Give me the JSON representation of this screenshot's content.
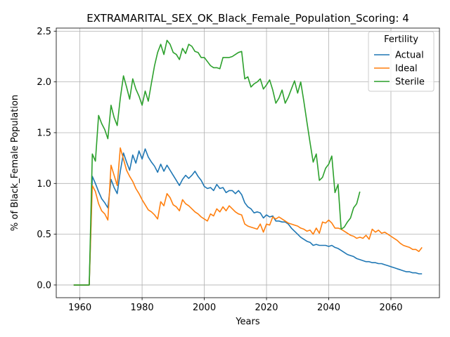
{
  "chart_data": {
    "type": "line",
    "title": "EXTRAMARITAL_SEX_OK_Black_Female_Population_Scoring: 4",
    "xlabel": "Years",
    "ylabel": "% of Black_Female Population",
    "xlim": [
      1952.4,
      2075.6
    ],
    "ylim": [
      -0.125,
      2.53
    ],
    "xticks": [
      1960,
      1980,
      2000,
      2020,
      2040,
      2060
    ],
    "yticks": [
      0.0,
      0.5,
      1.0,
      1.5,
      2.0,
      2.5
    ],
    "xtick_labels": [
      "1960",
      "1980",
      "2000",
      "2020",
      "2040",
      "2060"
    ],
    "ytick_labels": [
      "0.0",
      "0.5",
      "1.0",
      "1.5",
      "2.0",
      "2.5"
    ],
    "grid": true,
    "legend_title": "Fertility",
    "legend_position": "top-right",
    "series": [
      {
        "name": "Actual",
        "color": "#1f77b4",
        "x": [
          1958,
          1959,
          1960,
          1961,
          1962,
          1963,
          1964,
          1965,
          1966,
          1967,
          1968,
          1969,
          1970,
          1971,
          1972,
          1973,
          1974,
          1975,
          1976,
          1977,
          1978,
          1979,
          1980,
          1981,
          1982,
          1983,
          1984,
          1985,
          1986,
          1987,
          1988,
          1989,
          1990,
          1991,
          1992,
          1993,
          1994,
          1995,
          1996,
          1997,
          1998,
          1999,
          2000,
          2001,
          2002,
          2003,
          2004,
          2005,
          2006,
          2007,
          2008,
          2009,
          2010,
          2011,
          2012,
          2013,
          2014,
          2015,
          2016,
          2017,
          2018,
          2019,
          2020,
          2021,
          2022,
          2023,
          2024,
          2025,
          2026,
          2027,
          2028,
          2029,
          2030,
          2031,
          2032,
          2033,
          2034,
          2035,
          2036,
          2037,
          2038,
          2039,
          2040,
          2041,
          2042,
          2043,
          2044,
          2045,
          2046,
          2047,
          2048,
          2049,
          2050,
          2051,
          2052,
          2053,
          2054,
          2055,
          2056,
          2057,
          2058,
          2059,
          2060,
          2061,
          2062,
          2063,
          2064,
          2065,
          2066,
          2067,
          2068,
          2069,
          2070
        ],
        "values": [
          0.0,
          0.0,
          0.0,
          0.0,
          0.0,
          0.0,
          1.07,
          1.0,
          0.92,
          0.85,
          0.81,
          0.76,
          1.04,
          0.96,
          0.9,
          1.12,
          1.3,
          1.21,
          1.13,
          1.28,
          1.2,
          1.32,
          1.24,
          1.34,
          1.26,
          1.21,
          1.17,
          1.11,
          1.19,
          1.12,
          1.18,
          1.13,
          1.08,
          1.03,
          0.98,
          1.04,
          1.08,
          1.05,
          1.08,
          1.12,
          1.07,
          1.03,
          0.97,
          0.95,
          0.96,
          0.93,
          0.99,
          0.95,
          0.96,
          0.91,
          0.93,
          0.93,
          0.9,
          0.93,
          0.89,
          0.81,
          0.77,
          0.75,
          0.71,
          0.72,
          0.71,
          0.66,
          0.69,
          0.67,
          0.68,
          0.63,
          0.63,
          0.62,
          0.62,
          0.6,
          0.56,
          0.53,
          0.5,
          0.47,
          0.45,
          0.43,
          0.42,
          0.39,
          0.4,
          0.39,
          0.39,
          0.39,
          0.38,
          0.39,
          0.37,
          0.36,
          0.34,
          0.32,
          0.3,
          0.29,
          0.28,
          0.26,
          0.25,
          0.24,
          0.23,
          0.23,
          0.22,
          0.22,
          0.21,
          0.21,
          0.2,
          0.19,
          0.18,
          0.17,
          0.16,
          0.15,
          0.14,
          0.13,
          0.13,
          0.12,
          0.12,
          0.11,
          0.11
        ],
        "x_note": ""
      },
      {
        "name": "Ideal",
        "color": "#ff7f0e",
        "x": [
          1958,
          1959,
          1960,
          1961,
          1962,
          1963,
          1964,
          1965,
          1966,
          1967,
          1968,
          1969,
          1970,
          1971,
          1972,
          1973,
          1974,
          1975,
          1976,
          1977,
          1978,
          1979,
          1980,
          1981,
          1982,
          1983,
          1984,
          1985,
          1986,
          1987,
          1988,
          1989,
          1990,
          1991,
          1992,
          1993,
          1994,
          1995,
          1996,
          1997,
          1998,
          1999,
          2000,
          2001,
          2002,
          2003,
          2004,
          2005,
          2006,
          2007,
          2008,
          2009,
          2010,
          2011,
          2012,
          2013,
          2014,
          2015,
          2016,
          2017,
          2018,
          2019,
          2020,
          2021,
          2022,
          2023,
          2024,
          2025,
          2026,
          2027,
          2028,
          2029,
          2030,
          2031,
          2032,
          2033,
          2034,
          2035,
          2036,
          2037,
          2038,
          2039,
          2040,
          2041,
          2042,
          2043,
          2044,
          2045,
          2046,
          2047,
          2048,
          2049,
          2050,
          2051,
          2052,
          2053,
          2054,
          2055,
          2056,
          2057,
          2058,
          2059,
          2060,
          2061,
          2062,
          2063,
          2064,
          2065,
          2066,
          2067,
          2068,
          2069,
          2070
        ],
        "values": [
          0.0,
          0.0,
          0.0,
          0.0,
          0.0,
          0.0,
          0.98,
          0.92,
          0.8,
          0.73,
          0.7,
          0.64,
          1.18,
          1.08,
          0.98,
          1.35,
          1.24,
          1.13,
          1.07,
          1.02,
          0.95,
          0.9,
          0.84,
          0.79,
          0.74,
          0.72,
          0.69,
          0.65,
          0.82,
          0.78,
          0.9,
          0.86,
          0.79,
          0.77,
          0.73,
          0.84,
          0.8,
          0.78,
          0.75,
          0.72,
          0.7,
          0.67,
          0.65,
          0.63,
          0.7,
          0.68,
          0.75,
          0.72,
          0.77,
          0.73,
          0.78,
          0.75,
          0.72,
          0.7,
          0.69,
          0.6,
          0.58,
          0.57,
          0.56,
          0.55,
          0.6,
          0.52,
          0.6,
          0.59,
          0.67,
          0.65,
          0.67,
          0.65,
          0.63,
          0.61,
          0.6,
          0.59,
          0.58,
          0.56,
          0.55,
          0.53,
          0.54,
          0.5,
          0.56,
          0.51,
          0.62,
          0.61,
          0.64,
          0.61,
          0.56,
          0.56,
          0.55,
          0.53,
          0.51,
          0.49,
          0.48,
          0.46,
          0.47,
          0.46,
          0.49,
          0.45,
          0.55,
          0.52,
          0.54,
          0.51,
          0.52,
          0.5,
          0.48,
          0.46,
          0.44,
          0.41,
          0.39,
          0.38,
          0.37,
          0.35,
          0.35,
          0.33,
          0.37
        ],
        "x_note": ""
      },
      {
        "name": "Sterile",
        "color": "#2ca02c",
        "x": [
          1958,
          1959,
          1960,
          1961,
          1962,
          1963,
          1964,
          1965,
          1966,
          1967,
          1968,
          1969,
          1970,
          1971,
          1972,
          1973,
          1974,
          1975,
          1976,
          1977,
          1978,
          1979,
          1980,
          1981,
          1982,
          1983,
          1984,
          1985,
          1986,
          1987,
          1988,
          1989,
          1990,
          1991,
          1992,
          1993,
          1994,
          1995,
          1996,
          1997,
          1998,
          1999,
          2000,
          2001,
          2002,
          2003,
          2004,
          2005,
          2006,
          2007,
          2008,
          2009,
          2010,
          2011,
          2012,
          2013,
          2014,
          2015,
          2016,
          2017,
          2018,
          2019,
          2020,
          2021,
          2022,
          2023,
          2024,
          2025,
          2026,
          2027,
          2028,
          2029,
          2030,
          2031,
          2032,
          2033,
          2034,
          2035,
          2036,
          2037,
          2038,
          2039,
          2040,
          2041,
          2042,
          2043,
          2044,
          2045,
          2046,
          2047,
          2048,
          2049,
          2050
        ],
        "values": [
          0.0,
          0.0,
          0.0,
          0.0,
          0.0,
          0.0,
          1.29,
          1.22,
          1.67,
          1.59,
          1.53,
          1.44,
          1.77,
          1.65,
          1.57,
          1.84,
          2.06,
          1.95,
          1.83,
          2.03,
          1.93,
          1.86,
          1.77,
          1.91,
          1.81,
          1.99,
          2.16,
          2.29,
          2.37,
          2.27,
          2.41,
          2.37,
          2.29,
          2.27,
          2.22,
          2.33,
          2.28,
          2.37,
          2.35,
          2.3,
          2.29,
          2.24,
          2.24,
          2.2,
          2.16,
          2.14,
          2.14,
          2.13,
          2.24,
          2.24,
          2.24,
          2.25,
          2.27,
          2.29,
          2.3,
          2.03,
          2.05,
          1.95,
          1.98,
          2.0,
          2.03,
          1.93,
          1.97,
          2.02,
          1.92,
          1.79,
          1.84,
          1.92,
          1.79,
          1.85,
          1.93,
          2.01,
          1.89,
          2.0,
          1.81,
          1.6,
          1.4,
          1.21,
          1.29,
          1.03,
          1.06,
          1.15,
          1.19,
          1.27,
          0.91,
          0.99,
          0.55,
          0.57,
          0.62,
          0.66,
          0.76,
          0.8,
          0.92
        ],
        "x_note": ""
      }
    ]
  }
}
